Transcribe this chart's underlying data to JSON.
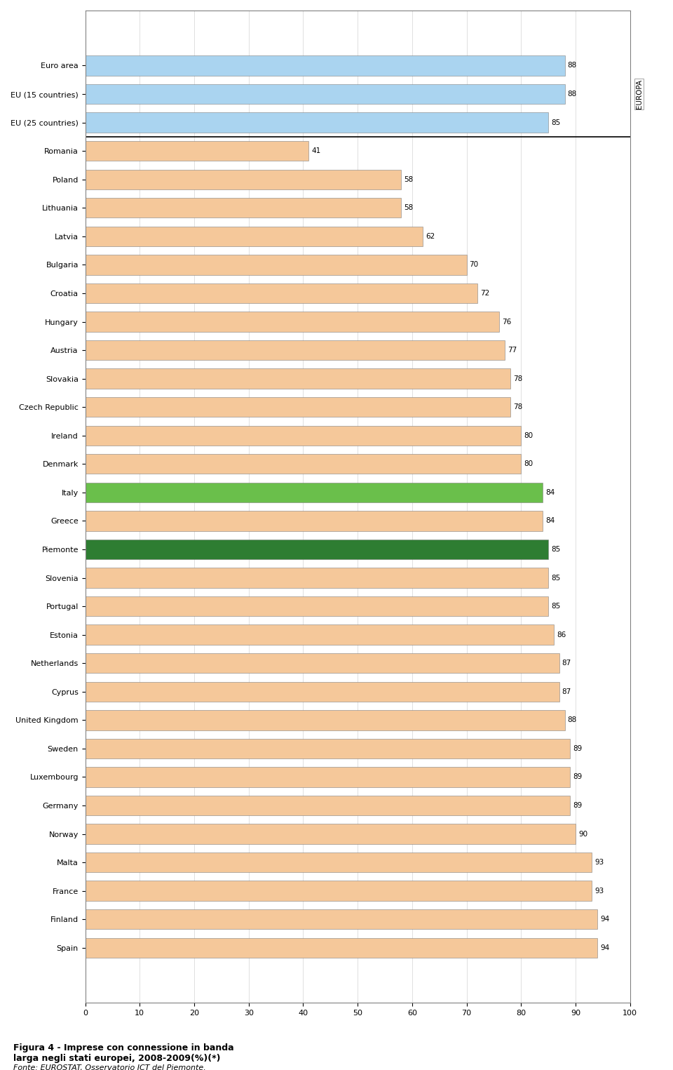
{
  "title": "Figura 4 - Imprese con connessione in banda\nlarga negli stati europei, 2008-2009(%)(*)  ",
  "source": "Fonte: EUROSTAT, Osservatorio ICT del Piemonte.",
  "categories": [
    "Euro area",
    "EU (15 countries)",
    "EU (25 countries)",
    "Romania",
    "Poland",
    "Lithuania",
    "Latvia",
    "Bulgaria",
    "Croatia",
    "Hungary",
    "Austria",
    "Slovakia",
    "Czech Republic",
    "Ireland",
    "Denmark",
    "Italy",
    "Greece",
    "Piemonte",
    "Slovenia",
    "Portugal",
    "Estonia",
    "Netherlands",
    "Cyprus",
    "United Kingdom",
    "Sweden",
    "Luxembourg",
    "Germany",
    "Norway",
    "Malta",
    "France",
    "Finland",
    "Spain"
  ],
  "values": [
    88,
    88,
    85,
    41,
    58,
    58,
    62,
    70,
    72,
    76,
    77,
    78,
    78,
    80,
    80,
    84,
    84,
    85,
    85,
    85,
    86,
    87,
    87,
    88,
    89,
    89,
    89,
    90,
    93,
    93,
    94,
    94
  ],
  "colors": {
    "europa": "#aad4f0",
    "normal": "#f5c89a",
    "italy": "#6abf4b",
    "piemonte": "#2e7d32"
  },
  "bar_categories": [
    "europa",
    "europa",
    "europa",
    "normal",
    "normal",
    "normal",
    "normal",
    "normal",
    "normal",
    "normal",
    "normal",
    "normal",
    "normal",
    "normal",
    "normal",
    "italy",
    "normal",
    "piemonte",
    "normal",
    "normal",
    "normal",
    "normal",
    "normal",
    "normal",
    "normal",
    "normal",
    "normal",
    "normal",
    "normal",
    "normal",
    "normal",
    "normal"
  ],
  "europa_label": "EUROPA",
  "xlim": [
    0,
    100
  ],
  "xticks": [
    0,
    10,
    20,
    30,
    40,
    50,
    60,
    70,
    80,
    90,
    100
  ],
  "separator_after": 2,
  "fig_title": "Figura 4 - Imprese con connessione in banda\nlarga negli stati europei, 2008-2009(%)(*)  ",
  "fonte": "Fonte: EUROSTAT, Osservatorio ICT del Piemonte."
}
